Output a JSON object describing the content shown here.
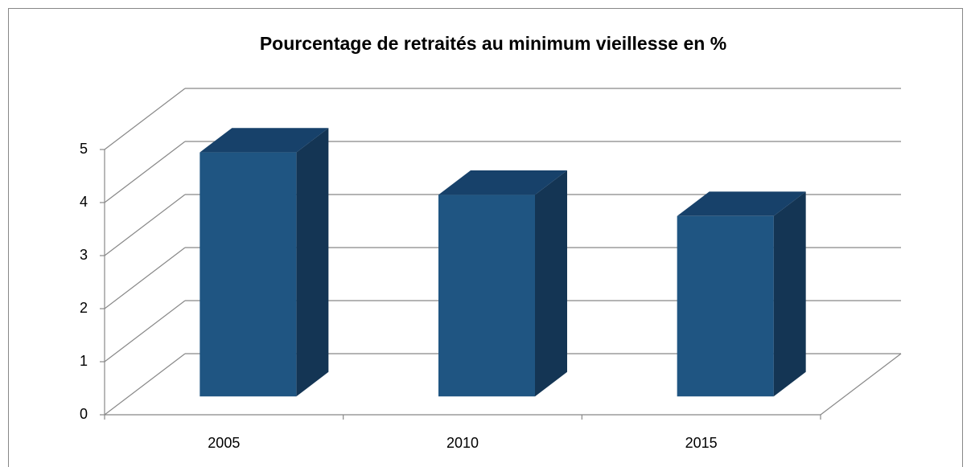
{
  "chart_data": {
    "type": "bar3d",
    "title": "Pourcentage de retraités au minimum vieillesse en %",
    "categories": [
      "2005",
      "2010",
      "2015"
    ],
    "values": [
      4.6,
      3.8,
      3.4
    ],
    "color": "#1f5582",
    "ylim": [
      0,
      5
    ],
    "yticks": [
      0,
      1,
      2,
      3,
      4,
      5
    ],
    "grid": true
  }
}
